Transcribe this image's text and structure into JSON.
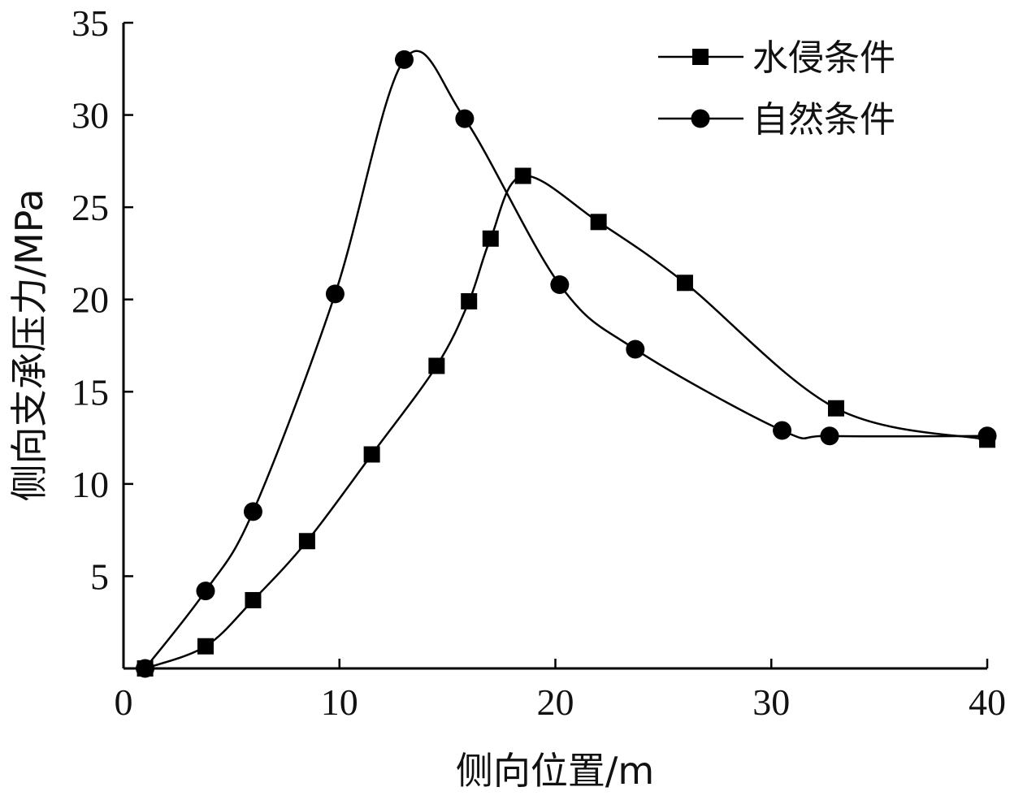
{
  "chart_data": {
    "type": "line",
    "title": "",
    "xlabel": "侧向位置/m",
    "ylabel": "侧向支承压力/MPa",
    "xlim": [
      0,
      40
    ],
    "ylim": [
      0,
      35
    ],
    "x_ticks": [
      "0",
      "10",
      "20",
      "30",
      "40"
    ],
    "y_ticks": [
      "5",
      "10",
      "15",
      "20",
      "25",
      "30",
      "35"
    ],
    "x_tick_values": [
      0,
      10,
      20,
      30,
      40
    ],
    "y_tick_values": [
      5,
      10,
      15,
      20,
      25,
      30,
      35
    ],
    "grid": false,
    "legend_position": "top-right",
    "series": [
      {
        "name": "水侵条件",
        "marker": "square",
        "color": "#000000",
        "x": [
          1,
          3.8,
          6,
          8.5,
          11.5,
          14.5,
          16,
          17,
          18.5,
          22,
          26,
          33,
          40
        ],
        "y": [
          0,
          1.2,
          3.7,
          6.9,
          11.6,
          16.4,
          19.9,
          23.3,
          26.7,
          24.2,
          20.9,
          14.1,
          12.4
        ]
      },
      {
        "name": "自然条件",
        "marker": "circle",
        "color": "#000000",
        "x": [
          1,
          3.8,
          6,
          9.8,
          13,
          15.8,
          20.2,
          23.7,
          30.5,
          32.7,
          40
        ],
        "y": [
          0,
          4.2,
          8.5,
          20.3,
          33,
          29.8,
          20.8,
          17.3,
          12.9,
          12.6,
          12.6
        ]
      }
    ]
  }
}
